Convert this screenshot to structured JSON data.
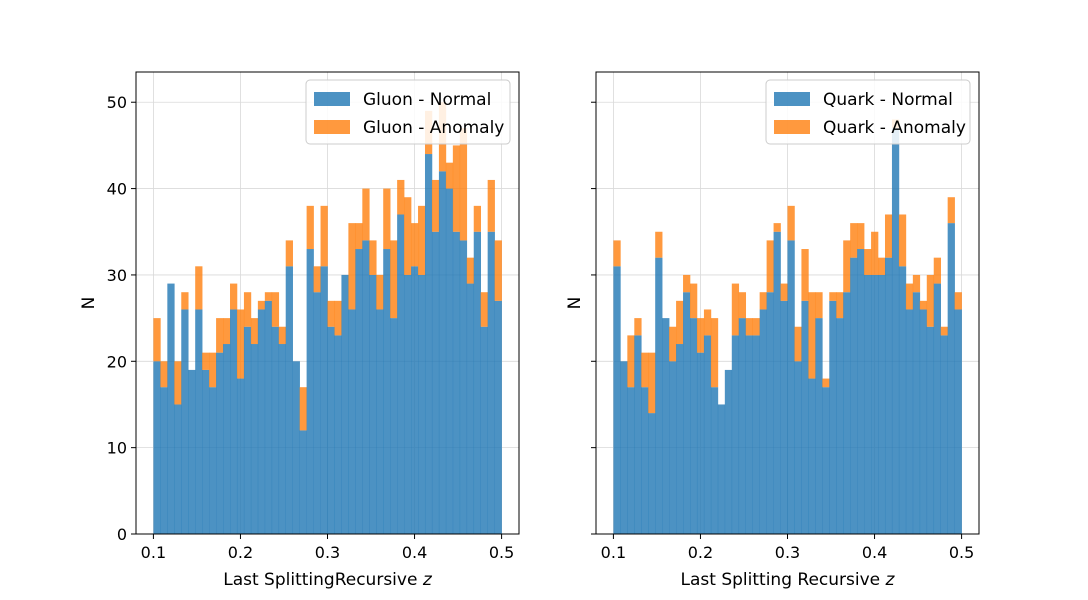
{
  "colors": {
    "normal": "#1f77b4",
    "anomaly": "#ff7f0e",
    "grid": "#d9d9d9",
    "axis": "#000000"
  },
  "chart_data": [
    {
      "type": "bar",
      "subtype": "stacked-histogram",
      "xlabel": "Last SplittingRecursive z",
      "ylabel": "N",
      "xlim": [
        0.08,
        0.52
      ],
      "ylim": [
        0,
        53.5
      ],
      "xticks": [
        "0.1",
        "0.2",
        "0.3",
        "0.4",
        "0.5"
      ],
      "yticks": [
        "0",
        "10",
        "20",
        "30",
        "40",
        "50"
      ],
      "grid": true,
      "legend_position": "top-right",
      "bin_range": [
        0.1,
        0.5
      ],
      "bins": 50,
      "series": [
        {
          "name": "Gluon - Normal",
          "values": [
            20,
            17,
            29,
            15,
            26,
            19,
            26,
            19,
            17,
            21,
            22,
            26,
            18,
            24,
            22,
            26,
            27,
            24,
            22,
            31,
            20,
            12,
            33,
            28,
            31,
            24,
            23,
            30,
            26,
            33,
            34,
            30,
            26,
            33,
            25,
            37,
            30,
            31,
            30,
            44,
            35,
            42,
            40,
            35,
            34,
            29,
            35,
            24,
            35,
            27
          ]
        },
        {
          "name": "Gluon - Anomaly",
          "values": [
            5,
            3,
            0,
            5,
            2,
            0,
            5,
            2,
            4,
            4,
            3,
            3,
            8,
            4,
            3,
            1,
            1,
            4,
            2,
            3,
            0,
            5,
            5,
            3,
            7,
            3,
            4,
            0,
            10,
            3,
            6,
            4,
            4,
            7,
            9,
            4,
            9,
            5,
            8,
            5,
            6,
            8,
            3,
            10,
            13,
            3,
            3,
            4,
            6,
            7
          ]
        }
      ]
    },
    {
      "type": "bar",
      "subtype": "stacked-histogram",
      "xlabel": "Last Splitting Recursive z",
      "ylabel": "N",
      "xlim": [
        0.08,
        0.52
      ],
      "ylim": [
        0,
        53.5
      ],
      "xticks": [
        "0.1",
        "0.2",
        "0.3",
        "0.4",
        "0.5"
      ],
      "yticks": [
        "0",
        "10",
        "20",
        "30",
        "40",
        "50"
      ],
      "grid": true,
      "legend_position": "top-right",
      "bin_range": [
        0.1,
        0.5
      ],
      "bins": 50,
      "series": [
        {
          "name": "Quark - Normal",
          "values": [
            31,
            20,
            17,
            23,
            17,
            14,
            32,
            25,
            20,
            22,
            28,
            25,
            21,
            23,
            17,
            15,
            19,
            23,
            25,
            23,
            23,
            26,
            28,
            35,
            27,
            34,
            20,
            27,
            18,
            25,
            17,
            27,
            25,
            28,
            32,
            33,
            30,
            30,
            30,
            32,
            47,
            31,
            26,
            28,
            26,
            24,
            29,
            23,
            36,
            26
          ]
        },
        {
          "name": "Quark - Anomaly",
          "values": [
            3,
            0,
            6,
            2,
            4,
            7,
            3,
            0,
            4,
            5,
            2,
            4,
            4,
            3,
            8,
            0,
            0,
            6,
            3,
            2,
            2,
            2,
            6,
            1,
            2,
            4,
            4,
            6,
            10,
            3,
            1,
            1,
            3,
            6,
            4,
            3,
            3,
            5,
            2,
            5,
            1,
            6,
            3,
            2,
            1,
            6,
            3,
            1,
            3,
            2
          ]
        }
      ]
    }
  ]
}
